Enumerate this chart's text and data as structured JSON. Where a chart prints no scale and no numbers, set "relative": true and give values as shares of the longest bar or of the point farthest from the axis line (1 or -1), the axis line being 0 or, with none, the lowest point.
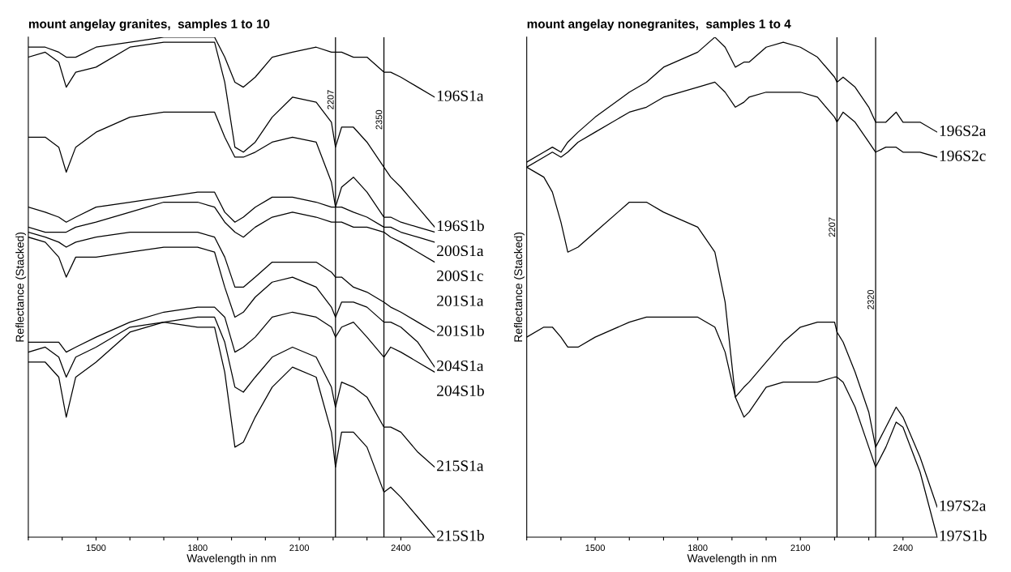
{
  "chart_data": [
    {
      "type": "line",
      "title": "mount angelay granites,  samples 1 to 10",
      "xlabel": "Wavelength in nm",
      "ylabel": "Reflectance (Stacked)",
      "relative": true,
      "grid": false,
      "legend": false,
      "marker": "none",
      "line_style": "solid",
      "xlim": [
        1300,
        2500
      ],
      "xticks": [
        {
          "value": 1300,
          "label": null
        },
        {
          "value": 1400,
          "label": null
        },
        1500,
        {
          "value": 1600,
          "label": null
        },
        {
          "value": 1700,
          "label": null
        },
        1800,
        {
          "value": 1900,
          "label": null
        },
        {
          "value": 2000,
          "label": null
        },
        2100,
        {
          "value": 2200,
          "label": null
        },
        {
          "value": 2300,
          "label": null
        },
        2400
      ],
      "x": [
        1300,
        1350,
        1390,
        1412,
        1440,
        1500,
        1600,
        1700,
        1800,
        1850,
        1880,
        1910,
        1935,
        1970,
        2020,
        2080,
        2150,
        2195,
        2207,
        2225,
        2260,
        2300,
        2350,
        2370,
        2400,
        2450,
        2500
      ],
      "ref_lines": [
        {
          "axis": "x",
          "value": 2207,
          "label": "2207",
          "color": "#000000"
        },
        {
          "axis": "x",
          "value": 2350,
          "label": "2350",
          "color": "#000000"
        }
      ],
      "series": [
        {
          "name": "196S1a",
          "color": "#000000",
          "values": [
            0.98,
            0.98,
            0.97,
            0.96,
            0.96,
            0.98,
            0.99,
            1.0,
            1.0,
            1.0,
            0.96,
            0.91,
            0.9,
            0.92,
            0.96,
            0.97,
            0.98,
            0.97,
            0.97,
            0.97,
            0.96,
            0.96,
            0.93,
            0.93,
            0.92,
            0.9,
            0.88
          ]
        },
        {
          "name": "196S1b",
          "color": "#000000",
          "values": [
            0.96,
            0.97,
            0.95,
            0.9,
            0.93,
            0.94,
            0.98,
            0.99,
            0.99,
            0.99,
            0.91,
            0.78,
            0.77,
            0.79,
            0.84,
            0.88,
            0.87,
            0.83,
            0.78,
            0.82,
            0.82,
            0.79,
            0.74,
            0.72,
            0.7,
            0.66,
            0.62
          ]
        },
        {
          "name": "200S1a",
          "color": "#000000",
          "values": [
            0.8,
            0.8,
            0.78,
            0.73,
            0.78,
            0.81,
            0.84,
            0.85,
            0.85,
            0.85,
            0.8,
            0.76,
            0.76,
            0.77,
            0.79,
            0.8,
            0.79,
            0.71,
            0.66,
            0.7,
            0.72,
            0.69,
            0.64,
            0.64,
            0.63,
            0.62,
            0.61
          ]
        },
        {
          "name": "200S1c",
          "color": "#000000",
          "values": [
            0.66,
            0.65,
            0.64,
            0.63,
            0.64,
            0.66,
            0.67,
            0.68,
            0.69,
            0.69,
            0.65,
            0.63,
            0.64,
            0.66,
            0.68,
            0.68,
            0.67,
            0.66,
            0.66,
            0.66,
            0.65,
            0.64,
            0.62,
            0.62,
            0.61,
            0.6,
            0.59
          ]
        },
        {
          "name": "201S1a",
          "color": "#000000",
          "values": [
            0.62,
            0.61,
            0.61,
            0.61,
            0.62,
            0.63,
            0.65,
            0.67,
            0.67,
            0.66,
            0.63,
            0.61,
            0.6,
            0.62,
            0.64,
            0.65,
            0.64,
            0.63,
            0.63,
            0.63,
            0.62,
            0.62,
            0.61,
            0.6,
            0.59,
            0.57,
            0.55
          ]
        },
        {
          "name": "201S1b",
          "color": "#000000",
          "values": [
            0.61,
            0.6,
            0.59,
            0.58,
            0.59,
            0.6,
            0.61,
            0.61,
            0.61,
            0.6,
            0.56,
            0.5,
            0.5,
            0.52,
            0.55,
            0.55,
            0.55,
            0.53,
            0.52,
            0.52,
            0.5,
            0.49,
            0.47,
            0.46,
            0.45,
            0.43,
            0.41
          ]
        },
        {
          "name": "204S1a",
          "color": "#000000",
          "values": [
            0.6,
            0.59,
            0.56,
            0.52,
            0.56,
            0.56,
            0.57,
            0.58,
            0.58,
            0.57,
            0.5,
            0.44,
            0.45,
            0.48,
            0.51,
            0.52,
            0.5,
            0.46,
            0.44,
            0.47,
            0.47,
            0.46,
            0.43,
            0.43,
            0.42,
            0.39,
            0.34
          ]
        },
        {
          "name": "204S1b",
          "color": "#000000",
          "values": [
            0.39,
            0.39,
            0.39,
            0.37,
            0.38,
            0.4,
            0.43,
            0.45,
            0.46,
            0.46,
            0.44,
            0.37,
            0.38,
            0.4,
            0.44,
            0.45,
            0.44,
            0.42,
            0.4,
            0.42,
            0.43,
            0.4,
            0.36,
            0.38,
            0.37,
            0.35,
            0.33
          ]
        },
        {
          "name": "215S1a",
          "color": "#000000",
          "values": [
            0.37,
            0.38,
            0.36,
            0.32,
            0.36,
            0.38,
            0.42,
            0.43,
            0.44,
            0.44,
            0.39,
            0.3,
            0.29,
            0.32,
            0.36,
            0.38,
            0.36,
            0.3,
            0.26,
            0.31,
            0.3,
            0.28,
            0.22,
            0.22,
            0.21,
            0.17,
            0.14
          ]
        },
        {
          "name": "215S1b",
          "color": "#000000",
          "values": [
            0.35,
            0.35,
            0.32,
            0.24,
            0.32,
            0.35,
            0.41,
            0.43,
            0.42,
            0.42,
            0.33,
            0.18,
            0.19,
            0.24,
            0.3,
            0.34,
            0.32,
            0.21,
            0.14,
            0.21,
            0.21,
            0.18,
            0.09,
            0.1,
            0.08,
            0.04,
            0.0
          ]
        }
      ]
    },
    {
      "type": "line",
      "title": "mount angelay nonegranites,  samples 1 to 4",
      "xlabel": "Wavelength in nm",
      "ylabel": "Reflectance (Stacked)",
      "relative": true,
      "grid": false,
      "legend": false,
      "marker": "none",
      "line_style": "solid",
      "xlim": [
        1300,
        2500
      ],
      "xticks": [
        {
          "value": 1300,
          "label": null
        },
        {
          "value": 1400,
          "label": null
        },
        1500,
        {
          "value": 1600,
          "label": null
        },
        {
          "value": 1700,
          "label": null
        },
        1800,
        {
          "value": 1900,
          "label": null
        },
        {
          "value": 2000,
          "label": null
        },
        2100,
        {
          "value": 2200,
          "label": null
        },
        {
          "value": 2300,
          "label": null
        },
        2400
      ],
      "x": [
        1300,
        1350,
        1375,
        1400,
        1420,
        1450,
        1500,
        1600,
        1650,
        1700,
        1800,
        1850,
        1880,
        1910,
        1935,
        1950,
        2000,
        2050,
        2100,
        2150,
        2200,
        2207,
        2225,
        2260,
        2300,
        2320,
        2350,
        2380,
        2400,
        2450,
        2500
      ],
      "ref_lines": [
        {
          "axis": "x",
          "value": 2207,
          "label": "2207",
          "color": "#000000"
        },
        {
          "axis": "x",
          "value": 2320,
          "label": "2320",
          "color": "#000000"
        }
      ],
      "series": [
        {
          "name": "196S2a",
          "color": "#000000",
          "values": [
            0.75,
            0.77,
            0.78,
            0.77,
            0.79,
            0.81,
            0.84,
            0.89,
            0.91,
            0.94,
            0.97,
            1.0,
            0.98,
            0.94,
            0.95,
            0.95,
            0.98,
            0.99,
            0.98,
            0.96,
            0.92,
            0.91,
            0.92,
            0.9,
            0.86,
            0.83,
            0.83,
            0.85,
            0.83,
            0.83,
            0.81
          ]
        },
        {
          "name": "196S2c",
          "color": "#000000",
          "values": [
            0.74,
            0.76,
            0.77,
            0.76,
            0.77,
            0.79,
            0.81,
            0.85,
            0.86,
            0.88,
            0.9,
            0.91,
            0.89,
            0.86,
            0.87,
            0.88,
            0.89,
            0.89,
            0.89,
            0.88,
            0.84,
            0.83,
            0.85,
            0.83,
            0.79,
            0.77,
            0.78,
            0.78,
            0.77,
            0.77,
            0.76
          ]
        },
        {
          "name": "197S2a",
          "color": "#000000",
          "values": [
            0.74,
            0.72,
            0.69,
            0.63,
            0.57,
            0.58,
            0.61,
            0.67,
            0.67,
            0.65,
            0.62,
            0.57,
            0.47,
            0.28,
            0.3,
            0.31,
            0.35,
            0.39,
            0.42,
            0.43,
            0.43,
            0.41,
            0.39,
            0.33,
            0.25,
            0.18,
            0.22,
            0.26,
            0.24,
            0.16,
            0.06
          ]
        },
        {
          "name": "197S1b",
          "color": "#000000",
          "values": [
            0.4,
            0.42,
            0.42,
            0.4,
            0.38,
            0.38,
            0.4,
            0.43,
            0.44,
            0.44,
            0.44,
            0.42,
            0.37,
            0.28,
            0.24,
            0.25,
            0.3,
            0.31,
            0.31,
            0.31,
            0.32,
            0.32,
            0.31,
            0.26,
            0.18,
            0.14,
            0.18,
            0.23,
            0.22,
            0.13,
            0.0
          ]
        }
      ]
    }
  ]
}
